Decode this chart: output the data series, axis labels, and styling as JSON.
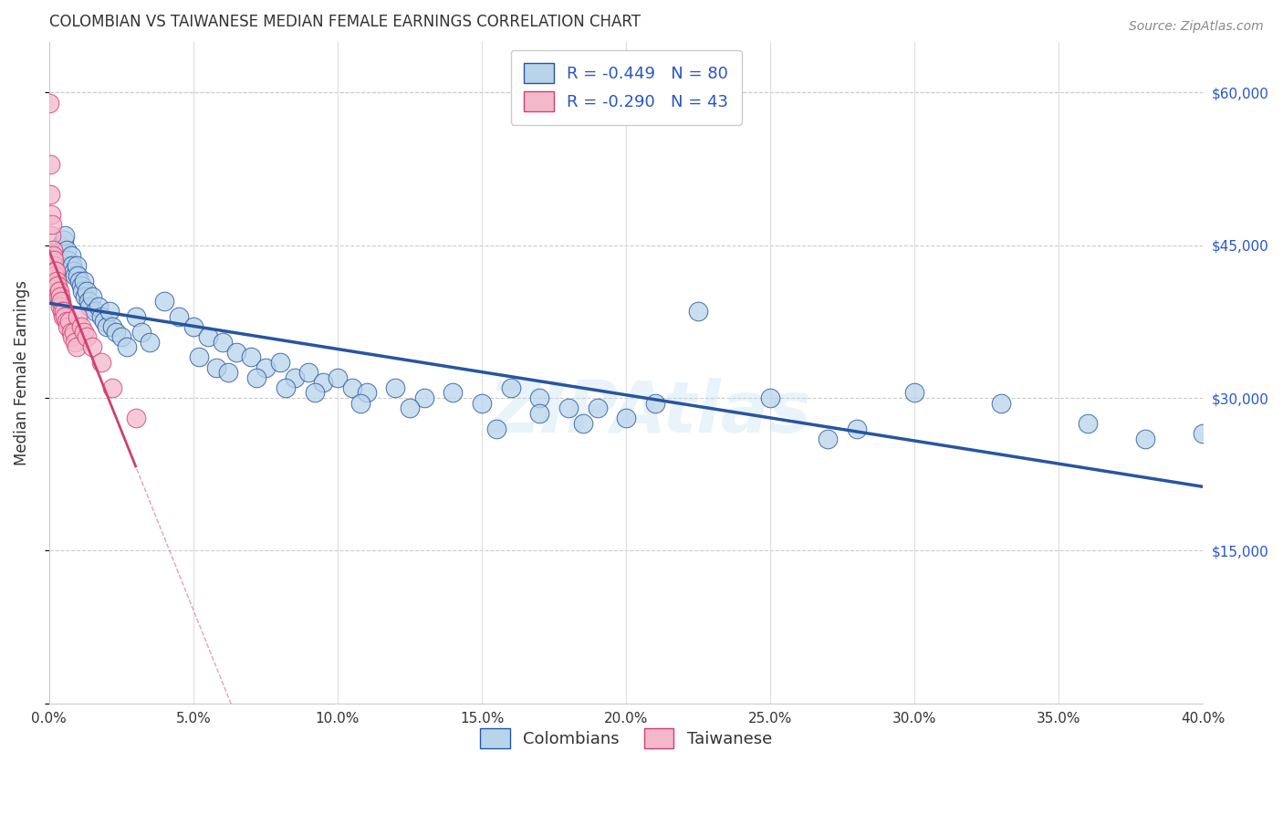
{
  "title": "COLOMBIAN VS TAIWANESE MEDIAN FEMALE EARNINGS CORRELATION CHART",
  "source": "Source: ZipAtlas.com",
  "xlim": [
    0.0,
    40.0
  ],
  "ylim": [
    0,
    65000
  ],
  "blue_R": -0.449,
  "blue_N": 80,
  "pink_R": -0.29,
  "pink_N": 43,
  "blue_color": "#b8d4ea",
  "pink_color": "#f4b8cb",
  "blue_line_color": "#2855a0",
  "pink_line_color": "#d04070",
  "label_color": "#2855c8",
  "watermark": "ZIPAtlas",
  "blue_x": [
    0.3,
    0.4,
    0.5,
    0.55,
    0.6,
    0.65,
    0.7,
    0.75,
    0.8,
    0.85,
    0.9,
    0.95,
    1.0,
    1.05,
    1.1,
    1.15,
    1.2,
    1.25,
    1.3,
    1.35,
    1.4,
    1.5,
    1.6,
    1.7,
    1.8,
    1.9,
    2.0,
    2.1,
    2.2,
    2.3,
    2.5,
    2.7,
    3.0,
    3.2,
    3.5,
    4.0,
    4.5,
    5.0,
    5.5,
    6.0,
    6.5,
    7.0,
    7.5,
    8.0,
    8.5,
    9.0,
    9.5,
    10.0,
    10.5,
    11.0,
    12.0,
    13.0,
    14.0,
    15.0,
    16.0,
    17.0,
    18.0,
    19.0,
    20.0,
    21.0,
    5.2,
    5.8,
    6.2,
    7.2,
    8.2,
    9.2,
    10.8,
    12.5,
    15.5,
    18.5,
    22.5,
    25.0,
    28.0,
    30.0,
    33.0,
    36.0,
    38.0,
    40.0,
    17.0,
    27.0
  ],
  "blue_y": [
    44000,
    45000,
    45500,
    46000,
    44500,
    43500,
    43000,
    44000,
    43000,
    42500,
    42000,
    43000,
    42000,
    41500,
    41000,
    40500,
    41500,
    40000,
    40500,
    39500,
    39000,
    40000,
    38500,
    39000,
    38000,
    37500,
    37000,
    38500,
    37000,
    36500,
    36000,
    35000,
    38000,
    36500,
    35500,
    39500,
    38000,
    37000,
    36000,
    35500,
    34500,
    34000,
    33000,
    33500,
    32000,
    32500,
    31500,
    32000,
    31000,
    30500,
    31000,
    30000,
    30500,
    29500,
    31000,
    30000,
    29000,
    29000,
    28000,
    29500,
    34000,
    33000,
    32500,
    32000,
    31000,
    30500,
    29500,
    29000,
    27000,
    27500,
    38500,
    30000,
    27000,
    30500,
    29500,
    27500,
    26000,
    26500,
    28500,
    26000
  ],
  "pink_x": [
    0.02,
    0.03,
    0.05,
    0.07,
    0.08,
    0.1,
    0.12,
    0.14,
    0.15,
    0.17,
    0.18,
    0.2,
    0.22,
    0.25,
    0.27,
    0.28,
    0.3,
    0.32,
    0.35,
    0.37,
    0.38,
    0.4,
    0.42,
    0.45,
    0.48,
    0.5,
    0.55,
    0.6,
    0.65,
    0.7,
    0.75,
    0.8,
    0.85,
    0.9,
    0.95,
    1.0,
    1.1,
    1.2,
    1.3,
    1.5,
    1.8,
    2.2,
    3.0
  ],
  "pink_y": [
    59000,
    53000,
    50000,
    48000,
    46000,
    47000,
    44500,
    44000,
    43000,
    43500,
    42500,
    42000,
    42500,
    41000,
    41500,
    40500,
    41000,
    40000,
    40500,
    39500,
    40000,
    39000,
    39500,
    38500,
    38000,
    38500,
    38000,
    37500,
    37000,
    37500,
    36500,
    36000,
    36500,
    35500,
    35000,
    38000,
    37000,
    36500,
    36000,
    35000,
    33500,
    31000,
    28000
  ],
  "grid_color": "#cccccc",
  "grid_linestyle": "--"
}
